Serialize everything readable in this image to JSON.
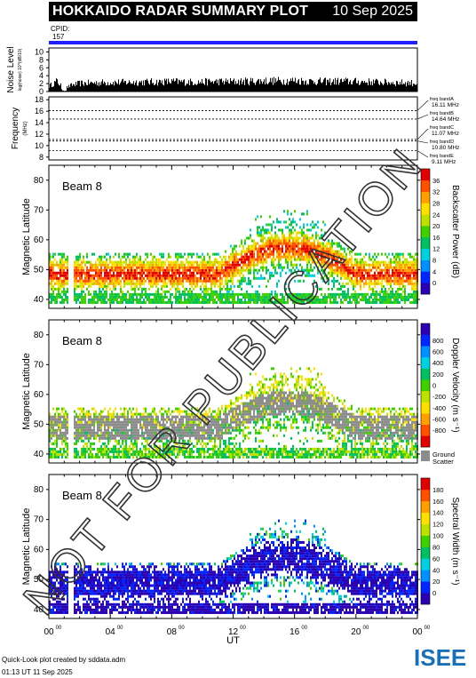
{
  "header": {
    "title": "HOKKAIDO RADAR SUMMARY PLOT",
    "date": "10 Sep 2025"
  },
  "cpid": {
    "label": "CPID:",
    "value": "157"
  },
  "footer": {
    "line1": "Quick-Look plot created by sddata.adm",
    "line2": "01:13 UT 11 Sep 2025"
  },
  "logo": {
    "text": "ISEE",
    "colors": [
      "#1a6fb5",
      "#2fa84f"
    ]
  },
  "watermark": "NOT FOR PUBLICATION",
  "chart_data": [
    {
      "type": "bar",
      "panel": "noise",
      "ylabel": "Noise Level",
      "ylabel_sub": "log(noise) 10^(dB/10)",
      "yticks": [
        0,
        2,
        4,
        6,
        8,
        10
      ],
      "ylim": [
        0,
        11
      ],
      "xlim_hours": [
        0,
        24
      ],
      "series": [
        {
          "x_hours": [
            0.0,
            0.5,
            1.0,
            1.5,
            2.0,
            3.0,
            4.0,
            5.0,
            6.0,
            7.0,
            8.0,
            9.0,
            10.0,
            11.0,
            12.0,
            13.0,
            14.0,
            15.0,
            16.0,
            17.0,
            18.0,
            19.0,
            20.0,
            21.0,
            22.0,
            23.0,
            24.0
          ],
          "values": [
            1.5,
            2.8,
            0.8,
            1.8,
            2.2,
            2.4,
            2.5,
            2.5,
            2.6,
            2.6,
            2.7,
            2.6,
            2.6,
            2.7,
            2.7,
            2.8,
            2.9,
            2.9,
            3.0,
            2.8,
            2.7,
            2.8,
            2.7,
            2.6,
            2.5,
            2.4,
            2.3
          ]
        }
      ]
    },
    {
      "type": "line",
      "panel": "frequency",
      "ylabel": "Frequency",
      "ylabel_sub": "(MHz)",
      "yticks": [
        8,
        10,
        12,
        14,
        16,
        18
      ],
      "ylim": [
        7.5,
        18.5
      ],
      "bands": [
        {
          "label": "freq bandA",
          "value": "16.11 MHz",
          "mhz": 16.11
        },
        {
          "label": "freq bandB",
          "value": "14.64 MHz",
          "mhz": 14.64
        },
        {
          "label": "freq bandC",
          "value": "11.07 MHz",
          "mhz": 11.07
        },
        {
          "label": "freq bandD",
          "value": "10.80 MHz",
          "mhz": 10.8
        },
        {
          "label": "freq bandE",
          "value": "9.11 MHz",
          "mhz": 9.11
        }
      ]
    },
    {
      "type": "heatmap",
      "panel": "power",
      "beam_label": "Beam  8",
      "ylabel": "Magnetic Latitude",
      "yticks": [
        40,
        50,
        60,
        70,
        80
      ],
      "ylim": [
        37,
        85
      ],
      "colorbar_title": "Backscatter Power (dB)",
      "colorbar_ticks": [
        "0",
        "4",
        "8",
        "12",
        "16",
        "20",
        "24",
        "28",
        "32",
        "36"
      ],
      "colorbar_colors": [
        "#2a00b0",
        "#0026ff",
        "#0090ff",
        "#00d0e0",
        "#00c060",
        "#40d000",
        "#c0e000",
        "#ffe000",
        "#ffa000",
        "#ff5000",
        "#e00000"
      ]
    },
    {
      "type": "heatmap",
      "panel": "velocity",
      "beam_label": "Beam  8",
      "ylabel": "Magnetic Latitude",
      "yticks": [
        40,
        50,
        60,
        70,
        80
      ],
      "ylim": [
        37,
        85
      ],
      "colorbar_title": "Doppler Velocity (m s⁻¹)",
      "colorbar_ticks": [
        "-800",
        "-600",
        "-400",
        "-200",
        "0",
        "200",
        "400",
        "600",
        "800"
      ],
      "colorbar_colors": [
        "#e00000",
        "#ff5000",
        "#ffa000",
        "#ffe000",
        "#c0e000",
        "#40d000",
        "#00c060",
        "#00d0e0",
        "#0090ff",
        "#0026ff",
        "#2a00b0"
      ],
      "ground_scatter_label": [
        "Ground",
        "Scatter"
      ]
    },
    {
      "type": "heatmap",
      "panel": "width",
      "beam_label": "Beam  8",
      "ylabel": "Magnetic Latitude",
      "yticks": [
        40,
        50,
        60,
        70,
        80
      ],
      "ylim": [
        37,
        85
      ],
      "colorbar_title": "Spectral Width (m s⁻¹)",
      "colorbar_ticks": [
        "0",
        "20",
        "40",
        "60",
        "80",
        "100",
        "120",
        "140",
        "160",
        "180"
      ],
      "colorbar_colors": [
        "#2a00b0",
        "#0026ff",
        "#0090ff",
        "#00d0e0",
        "#00c060",
        "#40d000",
        "#c0e000",
        "#ffe000",
        "#ffa000",
        "#ff5000",
        "#e00000"
      ]
    }
  ],
  "x_axis": {
    "xlabel": "UT",
    "ticks": [
      "00",
      "04",
      "08",
      "12",
      "16",
      "20",
      "00"
    ],
    "tick_superscript": "00",
    "xlim_hours": [
      0,
      24
    ]
  }
}
